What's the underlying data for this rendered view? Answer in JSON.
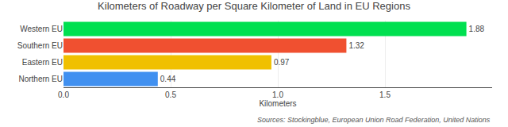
{
  "chart_data": {
    "type": "bar",
    "orientation": "horizontal",
    "title": "Kilometers of Roadway per Square Kilometer of Land in EU Regions",
    "categories": [
      "Northern EU",
      "Eastern EU",
      "Southern EU",
      "Western EU"
    ],
    "values": [
      0.44,
      0.97,
      1.32,
      1.88
    ],
    "colors": [
      "#4090f0",
      "#f0c000",
      "#f05030",
      "#00e050"
    ],
    "xlabel": "Kilometers",
    "xlim": [
      0,
      2.0
    ],
    "xticks": [
      {
        "value": 0,
        "label": "0.0"
      },
      0.5,
      {
        "value": 1,
        "label": "1.0"
      },
      1.5
    ],
    "grid": true,
    "data_labels": true,
    "annotations": [
      "Sources: Stockingblue, European Union Road Federation, United Nations"
    ]
  }
}
